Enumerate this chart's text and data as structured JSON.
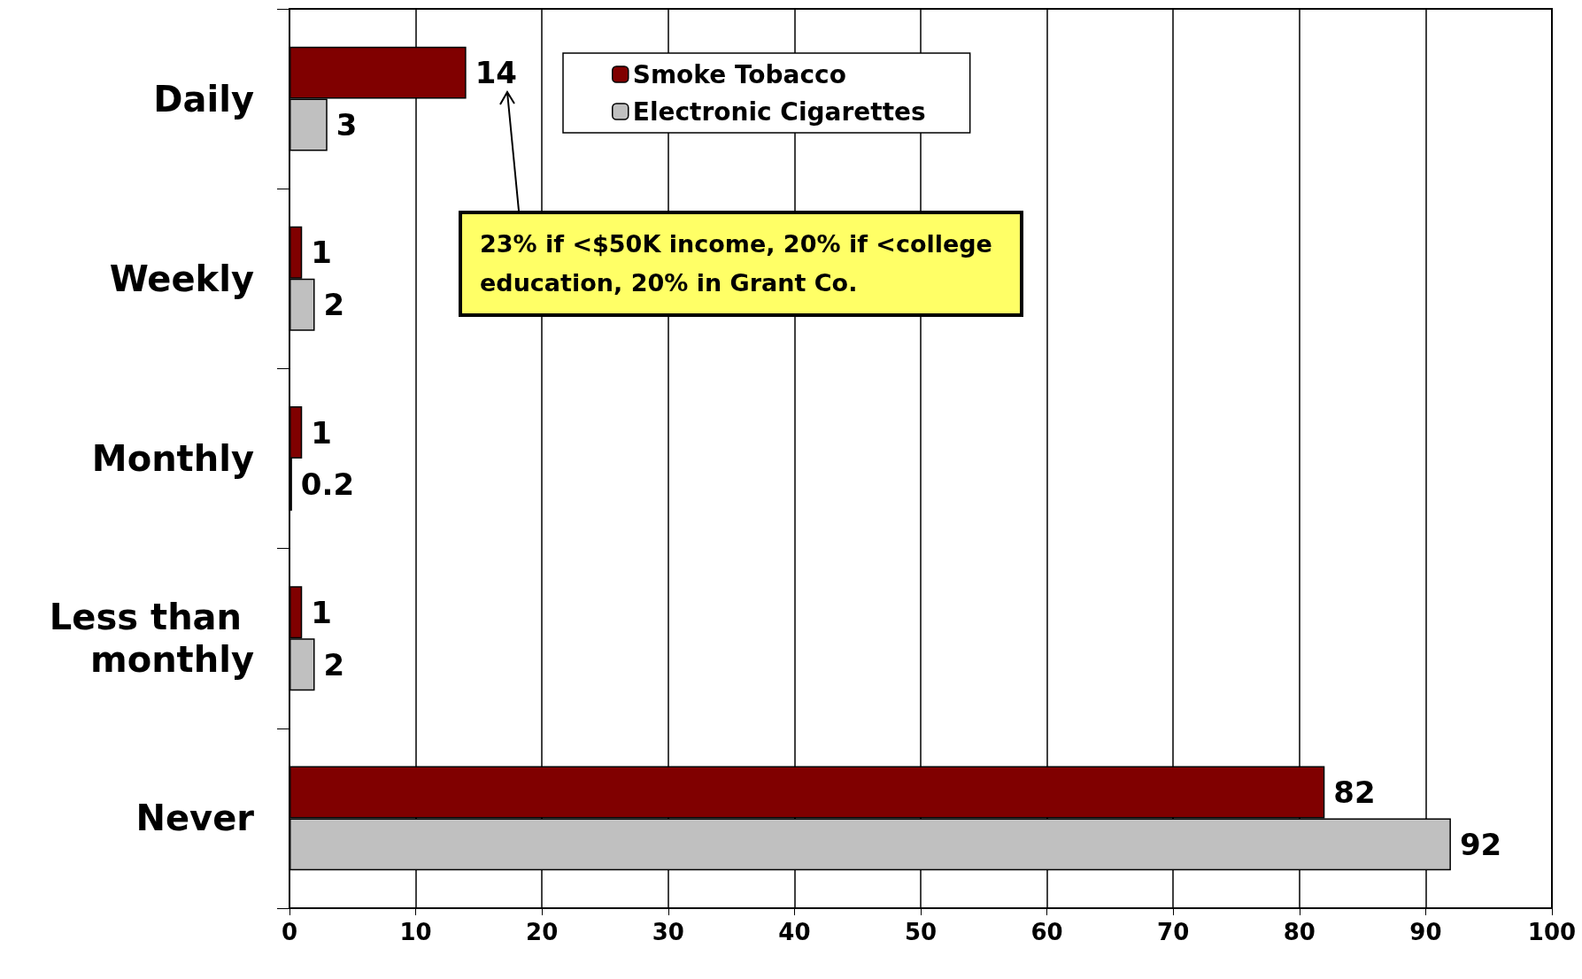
{
  "chart_data": {
    "type": "bar",
    "orientation": "horizontal",
    "categories": [
      "Daily",
      "Weekly",
      "Monthly",
      "Less than monthly",
      "Never"
    ],
    "series": [
      {
        "name": "Smoke Tobacco",
        "color": "#800000",
        "values": [
          14,
          1,
          1,
          1,
          82
        ]
      },
      {
        "name": "Electronic Cigarettes",
        "color": "#c0c0c0",
        "values": [
          3,
          2,
          0.2,
          2,
          92
        ]
      }
    ],
    "xlim": [
      0,
      100
    ],
    "xticks": [
      0,
      10,
      20,
      30,
      40,
      50,
      60,
      70,
      80,
      90,
      100
    ],
    "grid": "x",
    "legend": "top",
    "data_labels": true,
    "annotations": [
      "23% if <$50K income, 20% if <college education, 20% in Grant Co."
    ]
  }
}
